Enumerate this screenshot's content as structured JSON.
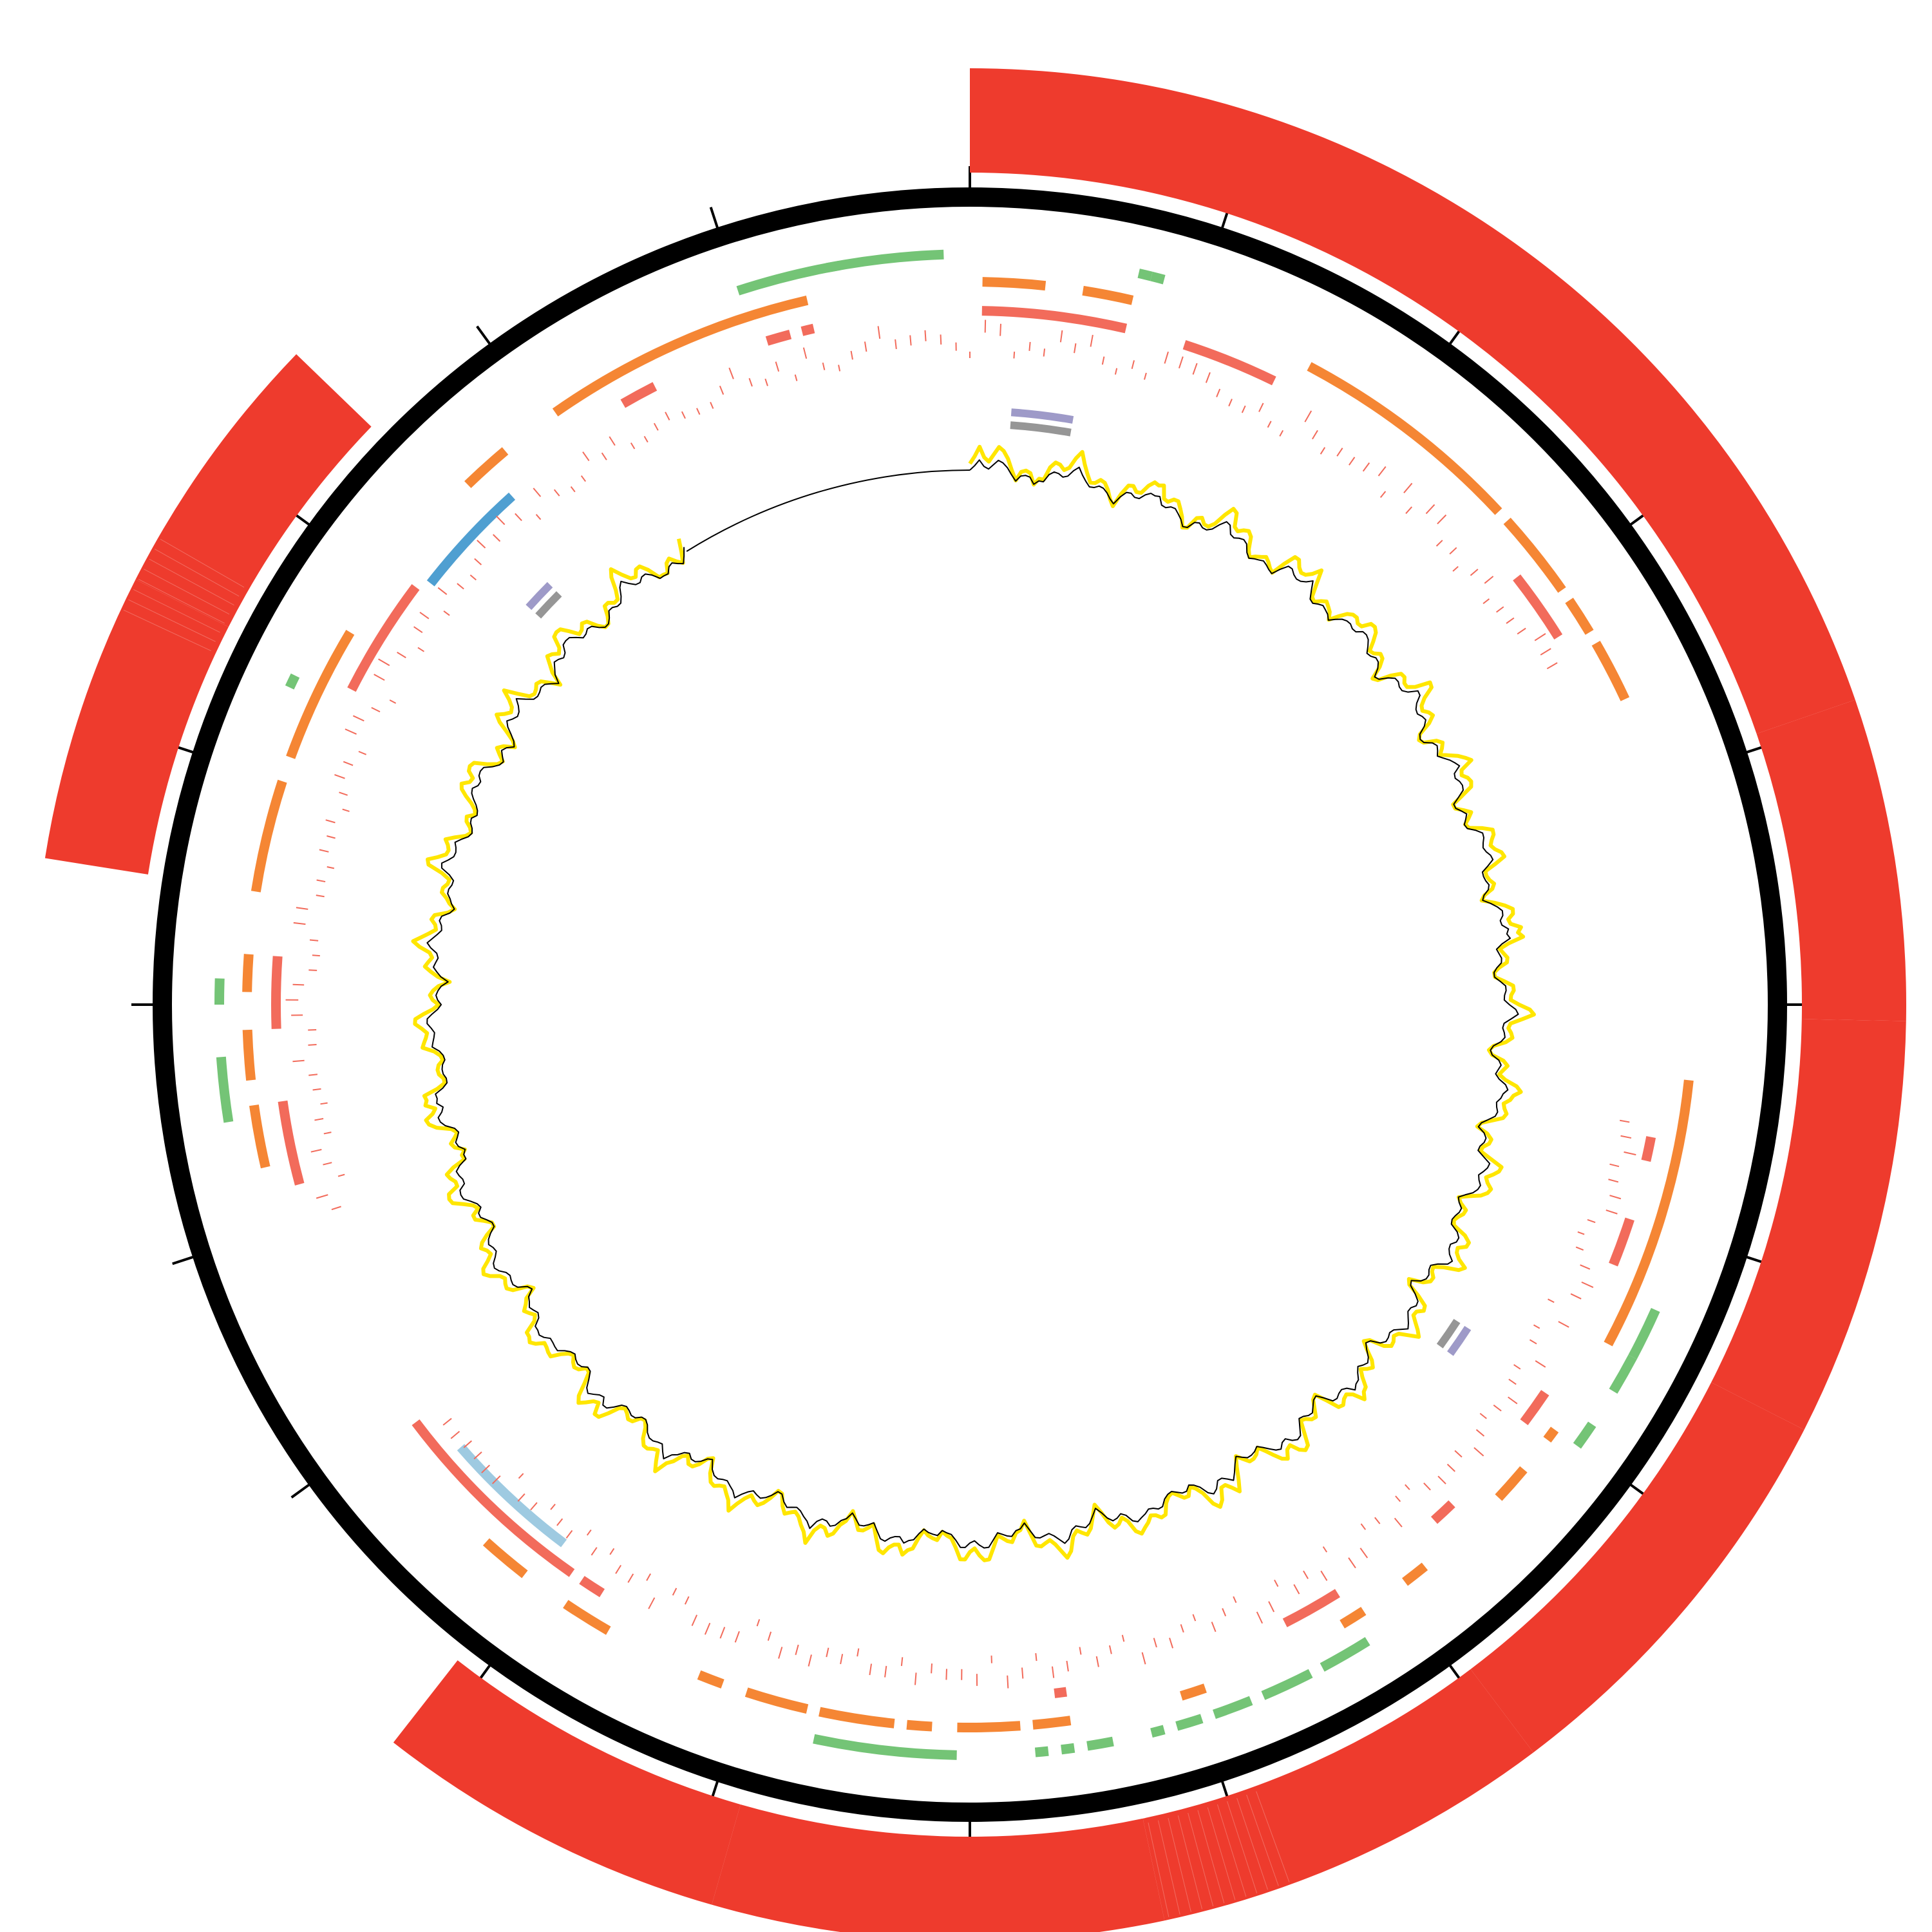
{
  "diagram": {
    "kind": "circular-genome-map",
    "tick_count": 20,
    "colors": {
      "backbone": "#000000",
      "red": "#ee3b2d",
      "orange": "#f58634",
      "green": "#74c476",
      "blue": "#4f9fd1",
      "lightblue": "#9ecae1",
      "lightred": "#f26b5b",
      "purple": "#9e9ac8",
      "gray": "#969696",
      "yellow": "#ffe600",
      "plot_line": "#000000"
    },
    "tracks": [
      {
        "name": "outer-blocks",
        "color_key": "red",
        "segments": [
          [
            0,
            71
          ],
          [
            71,
            91
          ],
          [
            91,
            117
          ],
          [
            117,
            143
          ],
          [
            143,
            168
          ],
          [
            168,
            196
          ],
          [
            196,
            218
          ],
          [
            279,
            297
          ],
          [
            297,
            314
          ]
        ]
      },
      {
        "name": "green-outer",
        "color_key": "green",
        "segments": [
          [
            349,
            358
          ],
          [
            13,
            14
          ],
          [
            14,
            15
          ],
          [
            114,
            118
          ],
          [
            118,
            121
          ],
          [
            124,
            126
          ],
          [
            148,
            152
          ],
          [
            153,
            157
          ],
          [
            158,
            161
          ],
          [
            162,
            164
          ],
          [
            165,
            166
          ],
          [
            169,
            171
          ],
          [
            172,
            173
          ],
          [
            174,
            175
          ],
          [
            181,
            192
          ],
          [
            261,
            266
          ],
          [
            270,
            272
          ],
          [
            295,
            296
          ],
          [
            342,
            350
          ]
        ]
      },
      {
        "name": "orange-mid",
        "color_key": "orange",
        "segments": [
          [
            1,
            6
          ],
          [
            9,
            13
          ],
          [
            28,
            47
          ],
          [
            48,
            55
          ],
          [
            56,
            59
          ],
          [
            60,
            65
          ],
          [
            96,
            118
          ],
          [
            126,
            127
          ],
          [
            130,
            133
          ],
          [
            141,
            143
          ],
          [
            147,
            149
          ],
          [
            161,
            163
          ],
          [
            172,
            175
          ],
          [
            176,
            181
          ],
          [
            183,
            185
          ],
          [
            186,
            192
          ],
          [
            193,
            198
          ],
          [
            200,
            202
          ],
          [
            210,
            214
          ],
          [
            218,
            222
          ],
          [
            257,
            262
          ],
          [
            264,
            268
          ],
          [
            271,
            274
          ],
          [
            279,
            288
          ],
          [
            290,
            301
          ],
          [
            316,
            320
          ],
          [
            325,
            347
          ]
        ]
      },
      {
        "name": "red-fragments",
        "color_key": "lightred",
        "segments": [
          [
            1,
            13
          ],
          [
            18,
            26
          ],
          [
            52,
            58
          ],
          [
            101,
            103
          ],
          [
            108,
            112
          ],
          [
            124,
            127
          ],
          [
            136,
            138
          ],
          [
            148,
            153
          ],
          [
            172,
            173
          ],
          [
            212,
            214
          ],
          [
            215,
            233
          ],
          [
            255,
            262
          ],
          [
            268,
            274
          ],
          [
            297,
            307
          ],
          [
            330,
            333
          ],
          [
            343,
            345
          ],
          [
            346,
            347
          ]
        ]
      },
      {
        "name": "blue",
        "color_key": "blue",
        "segments": [
          [
            308,
            318
          ]
        ]
      },
      {
        "name": "lightblue",
        "color_key": "lightblue",
        "segments": [
          [
            217,
            229
          ]
        ]
      },
      {
        "name": "purple",
        "color_key": "purple",
        "segments": [
          [
            4,
            10
          ],
          [
            123,
            126
          ],
          [
            312,
            315
          ]
        ]
      },
      {
        "name": "gray",
        "color_key": "gray",
        "segments": [
          [
            4,
            10
          ],
          [
            123,
            126
          ],
          [
            312,
            315
          ]
        ]
      }
    ],
    "plot": {
      "start_deg": 0,
      "end_deg": 328
    },
    "legend": []
  }
}
